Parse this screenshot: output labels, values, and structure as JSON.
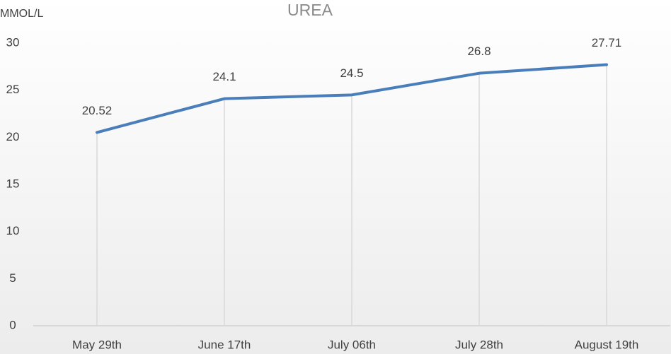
{
  "chart_data": {
    "type": "line",
    "title": "UREA",
    "y_label": "MMOL/L",
    "categories": [
      "May 29th",
      "June 17th",
      "July 06th",
      "July 28th",
      "August 19th"
    ],
    "values": [
      20.52,
      24.1,
      24.5,
      26.8,
      27.71
    ],
    "color": "#4a7ebb",
    "ylim": [
      0,
      30
    ],
    "yticks": [
      0,
      5,
      10,
      15,
      20,
      25,
      30
    ],
    "grid": false,
    "drop_lines": true
  }
}
